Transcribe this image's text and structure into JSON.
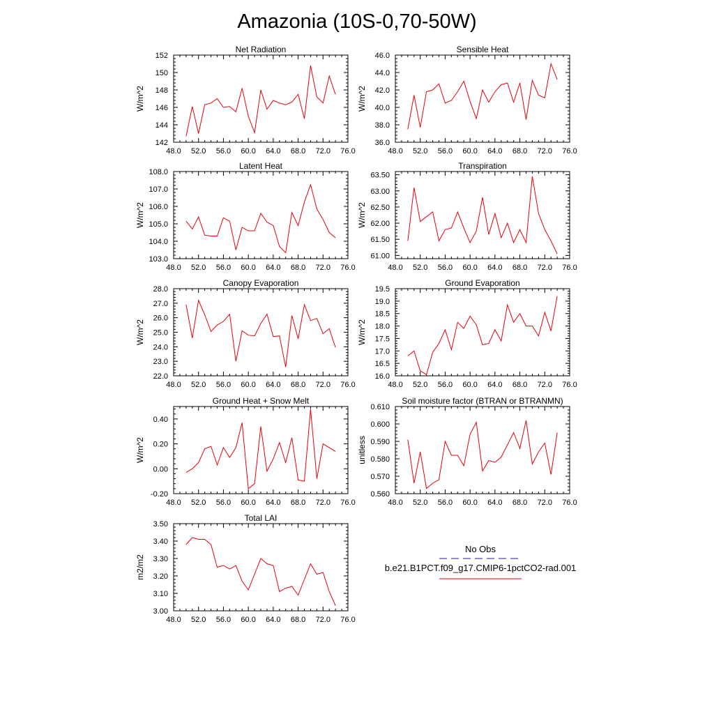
{
  "figure": {
    "title": "Amazonia (10S-0,70-50W)"
  },
  "colors": {
    "series": "#e8000b",
    "obs": "#1a1aa8",
    "axis": "#000000"
  },
  "chart_data": [
    {
      "type": "line",
      "title": "Net Radiation",
      "ylabel": "W/m^2",
      "xlabel": "",
      "xlim": [
        48,
        76
      ],
      "xticks": [
        48,
        52,
        56,
        60,
        64,
        68,
        72,
        76
      ],
      "xtick_labels": [
        "48.0",
        "52.0",
        "56.0",
        "60.0",
        "64.0",
        "68.0",
        "72.0",
        "76.0"
      ],
      "ylim": [
        142,
        152
      ],
      "yticks": [
        142,
        144,
        146,
        148,
        150,
        152
      ],
      "ytick_labels": [
        "142",
        "144",
        "146",
        "148",
        "150",
        "152"
      ],
      "grid": false,
      "x": [
        50,
        51,
        52,
        53,
        54,
        55,
        56,
        57,
        58,
        59,
        60,
        61,
        62,
        63,
        64,
        65,
        66,
        67,
        68,
        69,
        70,
        71,
        72,
        73,
        74
      ],
      "series": [
        {
          "name": "b.e21.B1PCT.f09_g17.CMIP6-1pctCO2-rad.001",
          "values": [
            142.7,
            146.1,
            143.0,
            146.3,
            146.5,
            147.0,
            146.0,
            146.1,
            145.5,
            148.2,
            145.0,
            143.1,
            148.0,
            145.8,
            146.8,
            146.5,
            146.3,
            146.6,
            147.5,
            144.7,
            150.8,
            147.2,
            146.5,
            149.6,
            147.5
          ]
        }
      ]
    },
    {
      "type": "line",
      "title": "Sensible Heat",
      "ylabel": "W/m^2",
      "xlabel": "",
      "xlim": [
        48,
        76
      ],
      "xticks": [
        48,
        52,
        56,
        60,
        64,
        68,
        72,
        76
      ],
      "xtick_labels": [
        "48.0",
        "52.0",
        "56.0",
        "60.0",
        "64.0",
        "68.0",
        "72.0",
        "76.0"
      ],
      "ylim": [
        36,
        46
      ],
      "yticks": [
        36,
        38,
        40,
        42,
        44,
        46
      ],
      "ytick_labels": [
        "36.0",
        "38.0",
        "40.0",
        "42.0",
        "44.0",
        "46.0"
      ],
      "grid": false,
      "x": [
        50,
        51,
        52,
        53,
        54,
        55,
        56,
        57,
        58,
        59,
        60,
        61,
        62,
        63,
        64,
        65,
        66,
        67,
        68,
        69,
        70,
        71,
        72,
        73,
        74
      ],
      "series": [
        {
          "name": "b.e21.B1PCT.f09_g17.CMIP6-1pctCO2-rad.001",
          "values": [
            37.5,
            41.4,
            37.7,
            41.8,
            42.0,
            42.7,
            40.5,
            40.8,
            41.8,
            43.0,
            40.7,
            38.7,
            42.0,
            40.6,
            41.8,
            42.6,
            42.8,
            40.6,
            42.8,
            38.6,
            43.1,
            41.4,
            41.1,
            45.0,
            43.2
          ]
        }
      ]
    },
    {
      "type": "line",
      "title": "Latent Heat",
      "ylabel": "W/m^2",
      "xlabel": "",
      "xlim": [
        48,
        76
      ],
      "xticks": [
        48,
        52,
        56,
        60,
        64,
        68,
        72,
        76
      ],
      "xtick_labels": [
        "48.0",
        "52.0",
        "56.0",
        "60.0",
        "64.0",
        "68.0",
        "72.0",
        "76.0"
      ],
      "ylim": [
        103,
        108
      ],
      "yticks": [
        103,
        104,
        105,
        106,
        107,
        108
      ],
      "ytick_labels": [
        "103.0",
        "104.0",
        "105.0",
        "106.0",
        "107.0",
        "108.0"
      ],
      "grid": false,
      "x": [
        50,
        51,
        52,
        53,
        54,
        55,
        56,
        57,
        58,
        59,
        60,
        61,
        62,
        63,
        64,
        65,
        66,
        67,
        68,
        69,
        70,
        71,
        72,
        73,
        74
      ],
      "series": [
        {
          "name": "b.e21.B1PCT.f09_g17.CMIP6-1pctCO2-rad.001",
          "values": [
            105.15,
            104.7,
            105.4,
            104.35,
            104.3,
            104.3,
            105.35,
            105.15,
            103.5,
            104.8,
            104.6,
            104.6,
            105.6,
            105.1,
            104.9,
            103.7,
            103.35,
            105.65,
            104.9,
            106.25,
            107.25,
            105.85,
            105.25,
            104.5,
            104.2
          ]
        }
      ]
    },
    {
      "type": "line",
      "title": "Transpiration",
      "ylabel": "W/m^2",
      "xlabel": "",
      "xlim": [
        48,
        76
      ],
      "xticks": [
        48,
        52,
        56,
        60,
        64,
        68,
        72,
        76
      ],
      "xtick_labels": [
        "48.0",
        "52.0",
        "56.0",
        "60.0",
        "64.0",
        "68.0",
        "72.0",
        "76.0"
      ],
      "ylim": [
        60.9,
        63.6
      ],
      "yticks": [
        61.0,
        61.5,
        62.0,
        62.5,
        63.0,
        63.5
      ],
      "ytick_labels": [
        "61.00",
        "61.50",
        "62.00",
        "62.50",
        "63.00",
        "63.50"
      ],
      "grid": false,
      "x": [
        50,
        51,
        52,
        53,
        54,
        55,
        56,
        57,
        58,
        59,
        60,
        61,
        62,
        63,
        64,
        65,
        66,
        67,
        68,
        69,
        70,
        71,
        72,
        73,
        74
      ],
      "series": [
        {
          "name": "b.e21.B1PCT.f09_g17.CMIP6-1pctCO2-rad.001",
          "values": [
            61.45,
            63.1,
            62.05,
            62.2,
            62.35,
            61.45,
            61.8,
            61.85,
            62.35,
            61.85,
            61.4,
            61.75,
            62.8,
            61.65,
            62.3,
            61.55,
            62.0,
            61.4,
            61.8,
            61.4,
            63.45,
            62.3,
            61.8,
            61.45,
            61.05
          ]
        }
      ]
    },
    {
      "type": "line",
      "title": "Canopy Evaporation",
      "ylabel": "W/m^2",
      "xlabel": "",
      "xlim": [
        48,
        76
      ],
      "xticks": [
        48,
        52,
        56,
        60,
        64,
        68,
        72,
        76
      ],
      "xtick_labels": [
        "48.0",
        "52.0",
        "56.0",
        "60.0",
        "64.0",
        "68.0",
        "72.0",
        "76.0"
      ],
      "ylim": [
        22,
        28
      ],
      "yticks": [
        22,
        23,
        24,
        25,
        26,
        27,
        28
      ],
      "ytick_labels": [
        "22.0",
        "23.0",
        "24.0",
        "25.0",
        "26.0",
        "27.0",
        "28.0"
      ],
      "grid": false,
      "x": [
        50,
        51,
        52,
        53,
        54,
        55,
        56,
        57,
        58,
        59,
        60,
        61,
        62,
        63,
        64,
        65,
        66,
        67,
        68,
        69,
        70,
        71,
        72,
        73,
        74
      ],
      "series": [
        {
          "name": "b.e21.B1PCT.f09_g17.CMIP6-1pctCO2-rad.001",
          "values": [
            26.9,
            24.6,
            27.2,
            26.2,
            25.05,
            25.5,
            25.75,
            26.25,
            23.0,
            25.1,
            24.8,
            24.75,
            25.6,
            26.25,
            24.7,
            24.75,
            22.6,
            26.15,
            24.55,
            26.9,
            25.8,
            25.95,
            24.9,
            25.25,
            23.95
          ]
        }
      ]
    },
    {
      "type": "line",
      "title": "Ground Evaporation",
      "ylabel": "W/m^2",
      "xlabel": "",
      "xlim": [
        48,
        76
      ],
      "xticks": [
        48,
        52,
        56,
        60,
        64,
        68,
        72,
        76
      ],
      "xtick_labels": [
        "48.0",
        "52.0",
        "56.0",
        "60.0",
        "64.0",
        "68.0",
        "72.0",
        "76.0"
      ],
      "ylim": [
        16,
        19.5
      ],
      "yticks": [
        16.0,
        16.5,
        17.0,
        17.5,
        18.0,
        18.5,
        19.0,
        19.5
      ],
      "ytick_labels": [
        "16.0",
        "16.5",
        "17.0",
        "17.5",
        "18.0",
        "18.5",
        "19.0",
        "19.5"
      ],
      "grid": false,
      "x": [
        50,
        51,
        52,
        53,
        54,
        55,
        56,
        57,
        58,
        59,
        60,
        61,
        62,
        63,
        64,
        65,
        66,
        67,
        68,
        69,
        70,
        71,
        72,
        73,
        74
      ],
      "series": [
        {
          "name": "b.e21.B1PCT.f09_g17.CMIP6-1pctCO2-rad.001",
          "values": [
            16.8,
            17.0,
            16.2,
            16.05,
            16.95,
            17.3,
            17.85,
            17.05,
            18.15,
            17.9,
            18.4,
            18.05,
            17.25,
            17.3,
            17.85,
            17.4,
            18.85,
            18.15,
            18.5,
            18.0,
            18.0,
            17.6,
            18.55,
            17.8,
            19.2
          ]
        }
      ]
    },
    {
      "type": "line",
      "title": "Ground Heat + Snow Melt",
      "ylabel": "W/m^2",
      "xlabel": "",
      "xlim": [
        48,
        76
      ],
      "xticks": [
        48,
        52,
        56,
        60,
        64,
        68,
        72,
        76
      ],
      "xtick_labels": [
        "48.0",
        "52.0",
        "56.0",
        "60.0",
        "64.0",
        "68.0",
        "72.0",
        "76.0"
      ],
      "ylim": [
        -0.2,
        0.5
      ],
      "yticks": [
        -0.2,
        0.0,
        0.2,
        0.4
      ],
      "ytick_labels": [
        "-0.20",
        "0.00",
        "0.20",
        "0.40"
      ],
      "grid": false,
      "x": [
        50,
        51,
        52,
        53,
        54,
        55,
        56,
        57,
        58,
        59,
        60,
        61,
        62,
        63,
        64,
        65,
        66,
        67,
        68,
        69,
        70,
        71,
        72,
        73,
        74
      ],
      "series": [
        {
          "name": "b.e21.B1PCT.f09_g17.CMIP6-1pctCO2-rad.001",
          "values": [
            -0.03,
            0.0,
            0.05,
            0.16,
            0.18,
            0.03,
            0.17,
            0.09,
            0.17,
            0.37,
            -0.16,
            -0.12,
            0.34,
            -0.02,
            0.08,
            0.21,
            0.05,
            0.25,
            -0.09,
            -0.1,
            0.48,
            -0.08,
            0.2,
            0.17,
            0.14
          ]
        }
      ]
    },
    {
      "type": "line",
      "title": "Soil moisture factor (BTRAN or BTRANMN)",
      "ylabel": "unitless",
      "xlabel": "",
      "xlim": [
        48,
        76
      ],
      "xticks": [
        48,
        52,
        56,
        60,
        64,
        68,
        72,
        76
      ],
      "xtick_labels": [
        "48.0",
        "52.0",
        "56.0",
        "60.0",
        "64.0",
        "68.0",
        "72.0",
        "76.0"
      ],
      "ylim": [
        0.56,
        0.61
      ],
      "yticks": [
        0.56,
        0.57,
        0.58,
        0.59,
        0.6,
        0.61
      ],
      "ytick_labels": [
        "0.560",
        "0.570",
        "0.580",
        "0.590",
        "0.600",
        "0.610"
      ],
      "grid": false,
      "x": [
        50,
        51,
        52,
        53,
        54,
        55,
        56,
        57,
        58,
        59,
        60,
        61,
        62,
        63,
        64,
        65,
        66,
        67,
        68,
        69,
        70,
        71,
        72,
        73,
        74
      ],
      "series": [
        {
          "name": "b.e21.B1PCT.f09_g17.CMIP6-1pctCO2-rad.001",
          "values": [
            0.591,
            0.566,
            0.584,
            0.563,
            0.566,
            0.568,
            0.59,
            0.582,
            0.582,
            0.576,
            0.594,
            0.601,
            0.573,
            0.579,
            0.578,
            0.581,
            0.588,
            0.595,
            0.586,
            0.602,
            0.577,
            0.584,
            0.589,
            0.571,
            0.595
          ]
        }
      ]
    },
    {
      "type": "line",
      "title": "Total LAI",
      "ylabel": "m2/m2",
      "xlabel": "",
      "xlim": [
        48,
        76
      ],
      "xticks": [
        48,
        52,
        56,
        60,
        64,
        68,
        72,
        76
      ],
      "xtick_labels": [
        "48.0",
        "52.0",
        "56.0",
        "60.0",
        "64.0",
        "68.0",
        "72.0",
        "76.0"
      ],
      "ylim": [
        3.0,
        3.5
      ],
      "yticks": [
        3.0,
        3.1,
        3.2,
        3.3,
        3.4,
        3.5
      ],
      "ytick_labels": [
        "3.00",
        "3.10",
        "3.20",
        "3.30",
        "3.40",
        "3.50"
      ],
      "grid": false,
      "x": [
        50,
        51,
        52,
        53,
        54,
        55,
        56,
        57,
        58,
        59,
        60,
        61,
        62,
        63,
        64,
        65,
        66,
        67,
        68,
        69,
        70,
        71,
        72,
        73,
        74
      ],
      "series": [
        {
          "name": "b.e21.B1PCT.f09_g17.CMIP6-1pctCO2-rad.001",
          "values": [
            3.38,
            3.42,
            3.41,
            3.41,
            3.38,
            3.25,
            3.26,
            3.24,
            3.26,
            3.17,
            3.12,
            3.21,
            3.3,
            3.27,
            3.26,
            3.11,
            3.13,
            3.14,
            3.09,
            3.18,
            3.27,
            3.21,
            3.22,
            3.11,
            3.03
          ]
        }
      ]
    }
  ],
  "legend": {
    "obs_label": "No Obs",
    "model_label": "b.e21.B1PCT.f09_g17.CMIP6-1pctCO2-rad.001"
  }
}
